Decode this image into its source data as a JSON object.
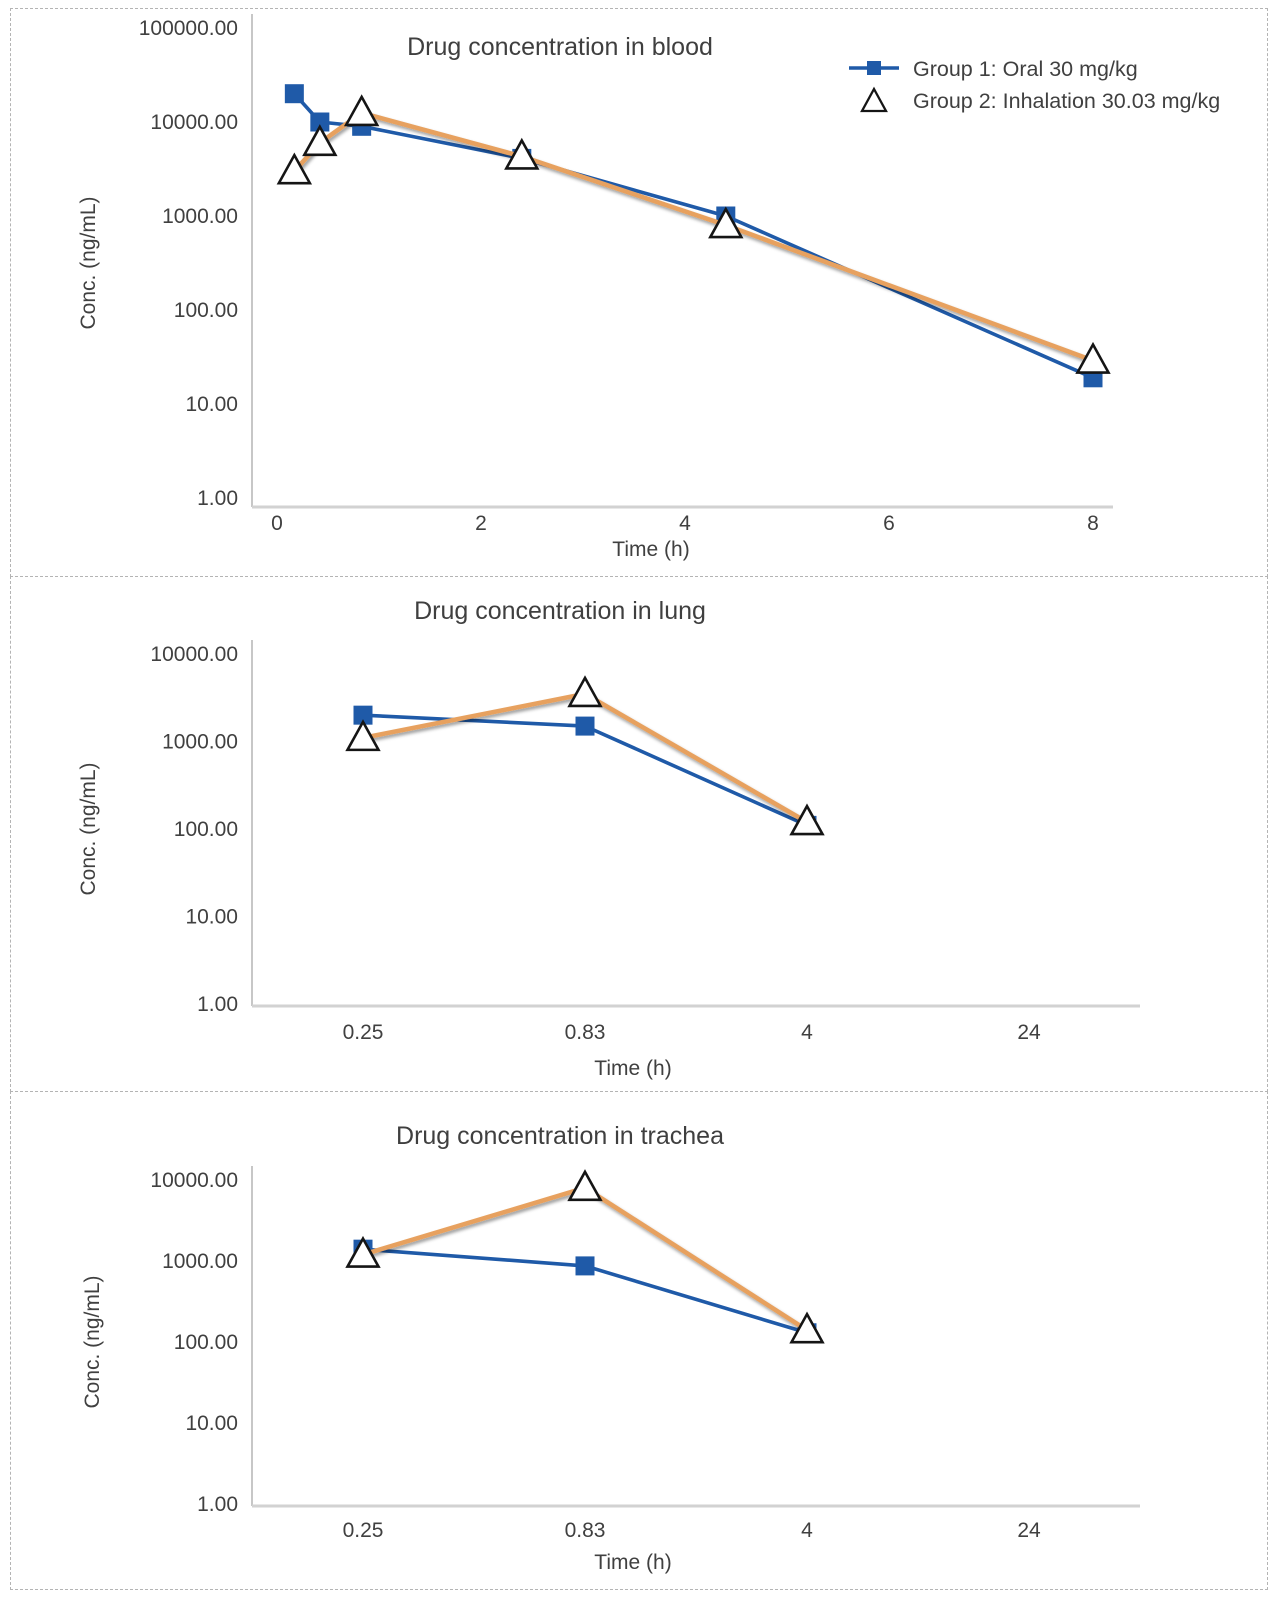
{
  "figure": {
    "background": "#ffffff",
    "panel_border_color": "#b4b4b4"
  },
  "styles": {
    "text_color": "#404040",
    "title_color": "#3f3f3f",
    "y_axis_line_color": "#b9b9b9",
    "x_axis_line_color": "#d2d2d2",
    "group1_color": "#1f5aa8",
    "group2_color": "#e7a15e",
    "triangle_fill": "#ffffff",
    "triangle_stroke": "#151515"
  },
  "legend": {
    "position": "top-right",
    "items": [
      {
        "label": "Group 1: Oral 30 mg/kg",
        "marker": "square",
        "series": "group1"
      },
      {
        "label": "Group 2: Inhalation 30.03 mg/kg",
        "marker": "triangle",
        "series": "group2"
      }
    ]
  },
  "chart_data": [
    {
      "type": "line",
      "title": "Drug concentration in blood",
      "xlabel": "Time (h)",
      "ylabel": "Conc. (ng/mL)",
      "y_scale": "log",
      "ylim": [
        1,
        100000
      ],
      "y_tick_labels": [
        "100000.00",
        "10000.00",
        "1000.00",
        "100.00",
        "10.00",
        "1.00"
      ],
      "x_axis": {
        "type": "linear",
        "tick_values": [
          0,
          2,
          4,
          6,
          8
        ],
        "tick_labels": [
          "0",
          "2",
          "4",
          "6",
          "8"
        ],
        "range": [
          0,
          8.2
        ]
      },
      "grid": false,
      "legend_shown": true,
      "series": [
        {
          "name": "Group 1: Oral 30 mg/kg",
          "marker": "square",
          "series_key": "group1",
          "x": [
            0.17,
            0.42,
            0.83,
            2.4,
            4.4,
            8
          ],
          "y": [
            20000,
            10000,
            9000,
            4100,
            1000,
            19
          ]
        },
        {
          "name": "Group 2: Inhalation 30.03 mg/kg",
          "marker": "triangle",
          "series_key": "group2",
          "x": [
            0.17,
            0.42,
            0.83,
            2.4,
            4.4,
            8
          ],
          "y": [
            3000,
            6000,
            12500,
            4300,
            800,
            29
          ]
        }
      ]
    },
    {
      "type": "line",
      "title": "Drug concentration in lung",
      "xlabel": "Time (h)",
      "ylabel": "Conc. (ng/mL)",
      "y_scale": "log",
      "ylim": [
        1,
        10000
      ],
      "y_tick_labels": [
        "10000.00",
        "1000.00",
        "100.00",
        "10.00",
        "1.00"
      ],
      "x_axis": {
        "type": "category",
        "categories": [
          "0.25",
          "0.83",
          "4",
          "24"
        ]
      },
      "grid": false,
      "legend_shown": false,
      "series": [
        {
          "name": "Group 1: Oral 30 mg/kg",
          "marker": "square",
          "series_key": "group1",
          "y": [
            2000,
            1500,
            110,
            null
          ]
        },
        {
          "name": "Group 2: Inhalation 30.03 mg/kg",
          "marker": "triangle",
          "series_key": "group2",
          "y": [
            1100,
            3500,
            120,
            null
          ]
        }
      ]
    },
    {
      "type": "line",
      "title": "Drug concentration in trachea",
      "xlabel": "Time (h)",
      "ylabel": "Conc. (ng/mL)",
      "y_scale": "log",
      "ylim": [
        1,
        10000
      ],
      "y_tick_labels": [
        "10000.00",
        "1000.00",
        "100.00",
        "10.00",
        "1.00"
      ],
      "x_axis": {
        "type": "category",
        "categories": [
          "0.25",
          "0.83",
          "4",
          "24"
        ]
      },
      "grid": false,
      "legend_shown": false,
      "series": [
        {
          "name": "Group 1: Oral 30 mg/kg",
          "marker": "square",
          "series_key": "group1",
          "y": [
            1400,
            870,
            130,
            null
          ]
        },
        {
          "name": "Group 2: Inhalation 30.03 mg/kg",
          "marker": "triangle",
          "series_key": "group2",
          "y": [
            1200,
            8000,
            140,
            null
          ]
        }
      ]
    }
  ]
}
